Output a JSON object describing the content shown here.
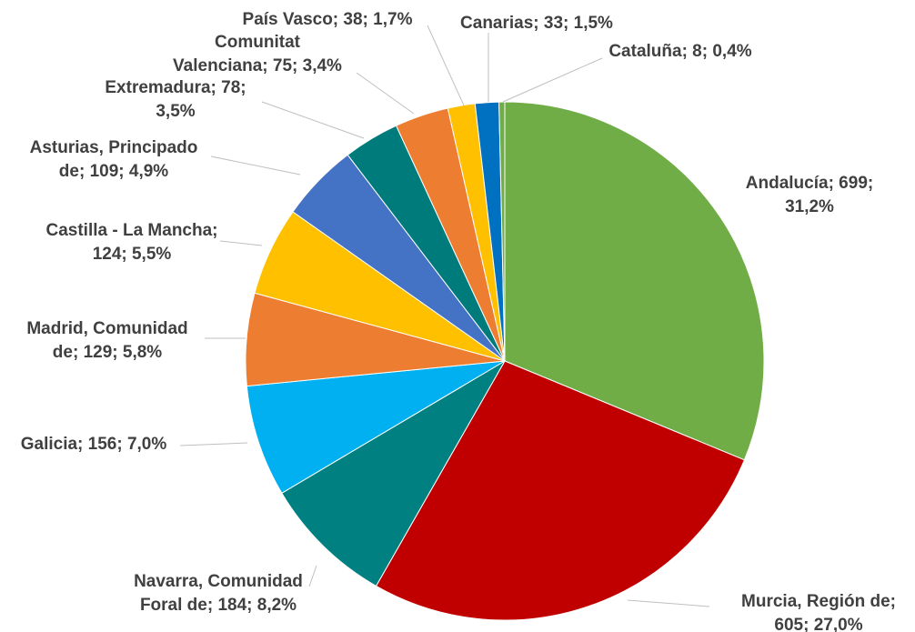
{
  "chart_data": {
    "type": "pie",
    "categories": [
      "Andalucía",
      "Murcia, Región de",
      "Navarra, Comunidad Foral de",
      "Galicia",
      "Madrid, Comunidad de",
      "Castilla - La Mancha",
      "Asturias, Principado de",
      "Extremadura",
      "Comunitat Valenciana",
      "País Vasco",
      "Canarias",
      "Cataluña"
    ],
    "values": [
      699,
      605,
      184,
      156,
      129,
      124,
      109,
      78,
      75,
      38,
      33,
      8
    ],
    "colors": [
      "#70ad47",
      "#c00000",
      "#008080",
      "#00b0f0",
      "#ed7d31",
      "#ffc000",
      "#4472c4",
      "#007b7b",
      "#ed7d31",
      "#ffc000",
      "#0070c0",
      "#70ad47"
    ],
    "labels": [
      [
        "Andalucía; 699;",
        "31,2%"
      ],
      [
        "Murcia, Región de;",
        "605; 27,0%"
      ],
      [
        "Navarra, Comunidad",
        "Foral de; 184; 8,2%"
      ],
      [
        "Galicia; 156; 7,0%"
      ],
      [
        "Madrid, Comunidad",
        "de; 129; 5,8%"
      ],
      [
        "Castilla - La Mancha;",
        "124; 5,5%"
      ],
      [
        "Asturias, Principado",
        "de; 109; 4,9%"
      ],
      [
        "Extremadura; 78;",
        "3,5%"
      ],
      [
        "Comunitat",
        "Valenciana; 75; 3,4%"
      ],
      [
        "País Vasco; 38; 1,7%"
      ],
      [
        "Canarias; 33; 1,5%"
      ],
      [
        "Cataluña; 8; 0,4%"
      ]
    ]
  }
}
